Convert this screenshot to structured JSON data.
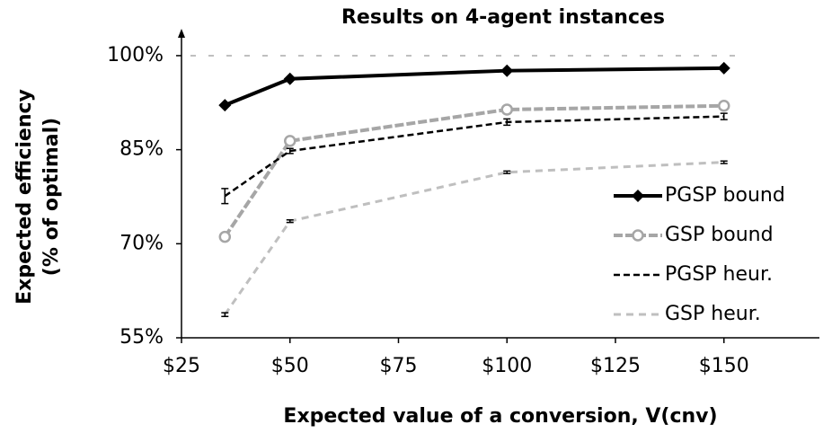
{
  "chart_data": {
    "type": "line",
    "title": "Results on 4-agent instances",
    "x_label": "Expected value of a conversion, V(cnv)",
    "y_label": [
      "Expected efficiency",
      "(% of optimal)"
    ],
    "x": [
      35,
      50,
      100,
      150
    ],
    "xlim": [
      25,
      172
    ],
    "xticks": [
      {
        "value": 25,
        "label": "$25"
      },
      {
        "value": 50,
        "label": "$50"
      },
      {
        "value": 75,
        "label": "$75"
      },
      {
        "value": 100,
        "label": "$100"
      },
      {
        "value": 125,
        "label": "$125"
      },
      {
        "value": 150,
        "label": "$150"
      }
    ],
    "ylim": [
      55,
      103
    ],
    "yticks": [
      {
        "value": 55,
        "label": "55%"
      },
      {
        "value": 70,
        "label": "70%"
      },
      {
        "value": 85,
        "label": "85%"
      },
      {
        "value": 100,
        "label": "100%"
      }
    ],
    "reference_line": 100,
    "series": [
      {
        "name": "PGSP bound",
        "color": "#000000",
        "values": [
          92.1,
          96.3,
          97.6,
          98.0
        ]
      },
      {
        "name": "GSP bound",
        "color": "#a6a6a6",
        "values": [
          71.1,
          86.4,
          91.4,
          92.0
        ]
      },
      {
        "name": "PGSP heur.",
        "color": "#000000",
        "values": [
          77.6,
          84.8,
          89.4,
          90.3
        ],
        "errors": [
          1.2,
          0.4,
          0.5,
          0.5
        ]
      },
      {
        "name": "GSP heur.",
        "color": "#bfbfbf",
        "values": [
          58.7,
          73.6,
          81.4,
          83.0
        ],
        "errors": [
          0.3,
          0.2,
          0.2,
          0.2
        ]
      }
    ]
  }
}
